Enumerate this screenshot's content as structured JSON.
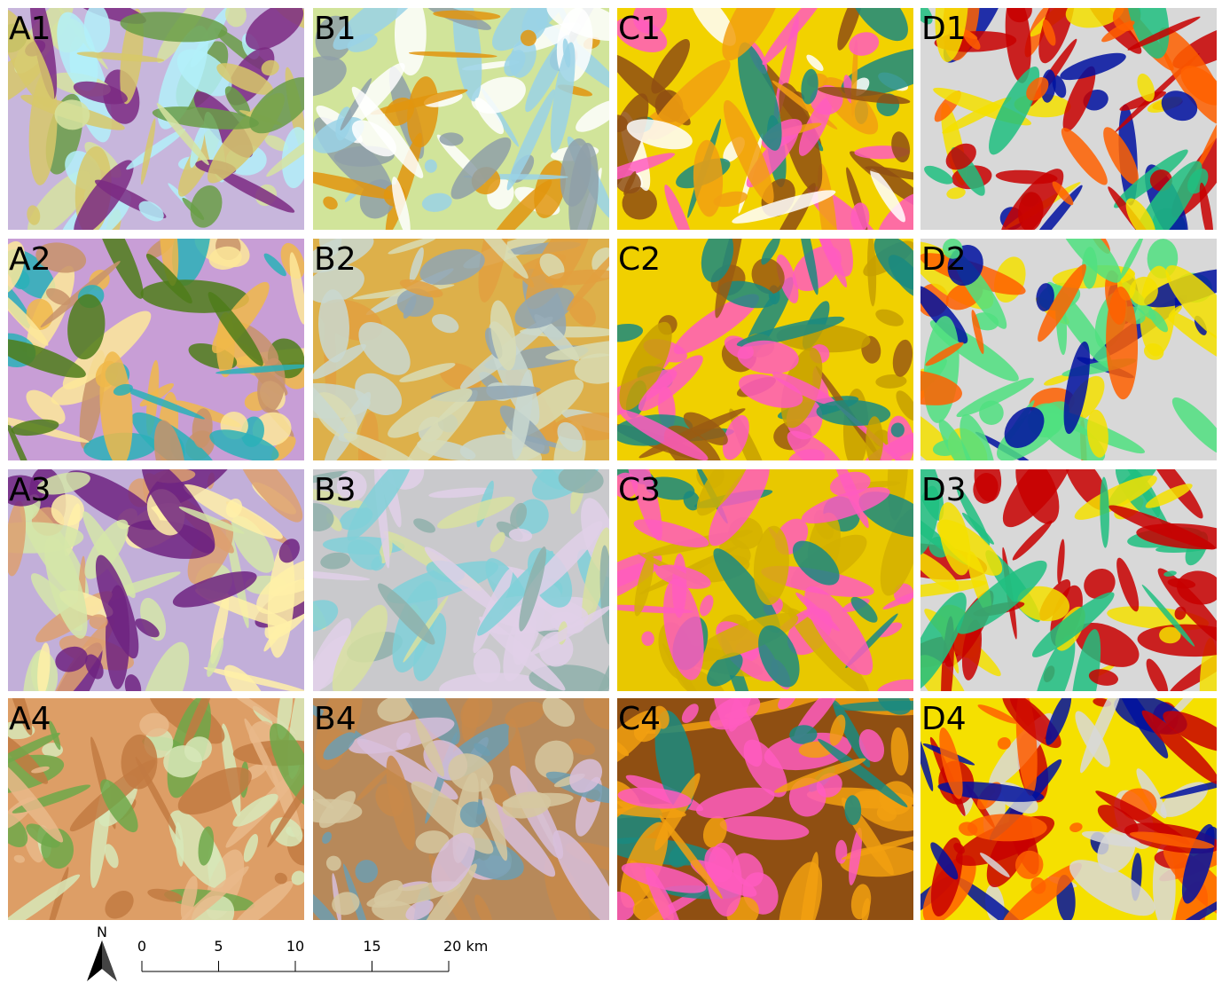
{
  "panels": [
    "A1",
    "B1",
    "C1",
    "D1",
    "A2",
    "B2",
    "C2",
    "D2",
    "A3",
    "B3",
    "C3",
    "D3",
    "A4",
    "B4",
    "C4",
    "D4"
  ],
  "north_label": "N",
  "scale_bar": {
    "ticks": [
      0,
      5,
      10,
      15,
      {
        "value": 20,
        "label": "20 km"
      }
    ]
  }
}
